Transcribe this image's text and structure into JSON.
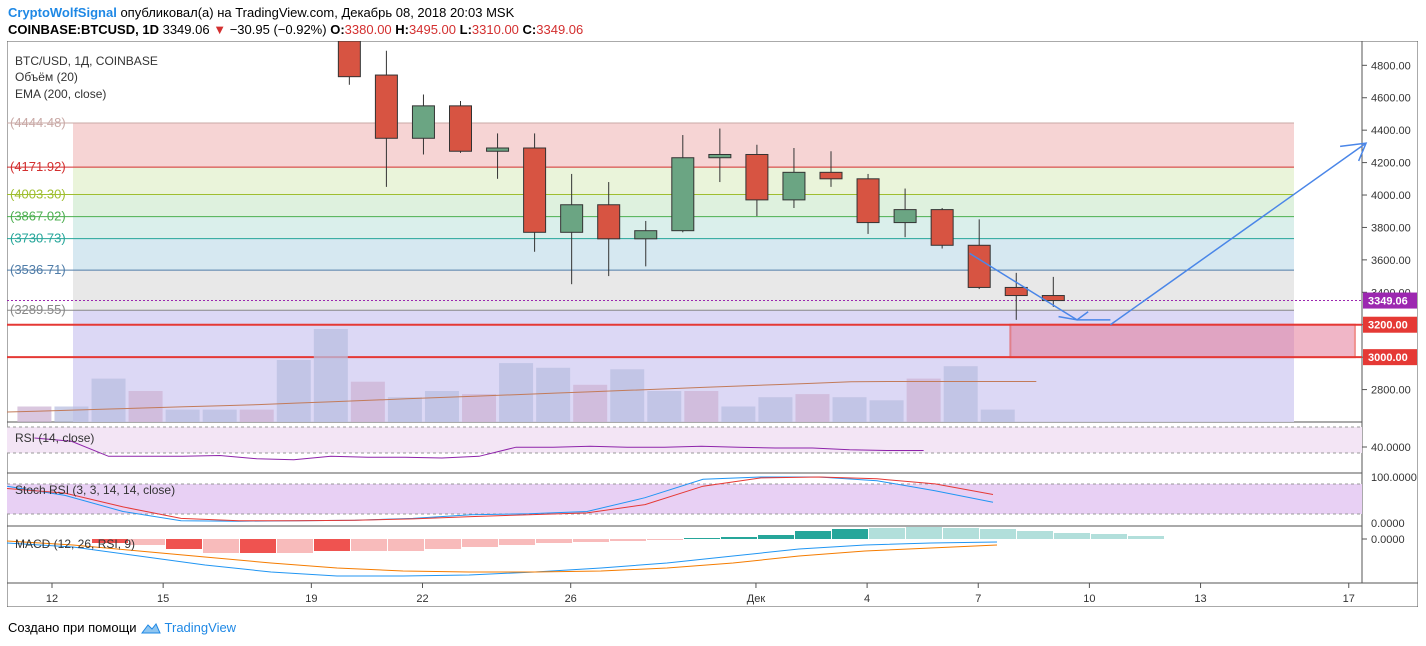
{
  "header": {
    "author": "CryptoWolfSignal",
    "published_text": "опубликовал(а) на TradingView.com, Декабрь 08, 2018 20:03 MSK",
    "symbol": "COINBASE:BTCUSD, 1D",
    "last": "3349.06",
    "change": "−30.95 (−0.92%)",
    "o_label": "O:",
    "o": "3380.00",
    "h_label": "H:",
    "h": "3495.00",
    "l_label": "L:",
    "l": "3310.00",
    "c_label": "C:",
    "c": "3349.06"
  },
  "legend": {
    "line1": "BTC/USD, 1Д, COINBASE",
    "line2": "Объём (20)",
    "line3": "EMA (200, close)",
    "rsi": "RSI (14, close)",
    "stoch": "Stoch RSI (3, 3, 14, 14, close)",
    "macd": "MACD (12, 26, RSI, 9)"
  },
  "footer": {
    "made_with": "Создано при помощи",
    "brand": "TradingView"
  },
  "colors": {
    "up": "#6ba583",
    "down": "#d75442",
    "ema": "#c27b5a",
    "arrow": "#4a86e8",
    "zone": "#e53935",
    "price_tag": "#9c27b0"
  },
  "chart_data": {
    "type": "candlestick",
    "x_labels": [
      "12",
      "15",
      "19",
      "22",
      "26",
      "Дек",
      "4",
      "7",
      "10",
      "13",
      "17"
    ],
    "y_ticks": [
      2800,
      3000,
      3200,
      3400,
      3600,
      3800,
      4000,
      4200,
      4400,
      4600,
      4800
    ],
    "y_tick_labels": [
      "2800.00",
      "3000.00",
      "3200.00",
      "3400.00",
      "3600.00",
      "3800.00",
      "4000.00",
      "4200.00",
      "4400.00",
      "4600.00",
      "4800.00"
    ],
    "ylim": [
      2600,
      4950
    ],
    "candles": [
      {
        "o": 4950,
        "h": 4950,
        "l": 4680,
        "c": 4730
      },
      {
        "o": 4740,
        "h": 4890,
        "l": 4050,
        "c": 4350
      },
      {
        "o": 4350,
        "h": 4620,
        "l": 4250,
        "c": 4550
      },
      {
        "o": 4550,
        "h": 4580,
        "l": 4260,
        "c": 4270
      },
      {
        "o": 4270,
        "h": 4380,
        "l": 4100,
        "c": 4290
      },
      {
        "o": 4290,
        "h": 4380,
        "l": 3650,
        "c": 3770
      },
      {
        "o": 3770,
        "h": 4130,
        "l": 3450,
        "c": 3940
      },
      {
        "o": 3940,
        "h": 4080,
        "l": 3500,
        "c": 3730
      },
      {
        "o": 3730,
        "h": 3840,
        "l": 3560,
        "c": 3780
      },
      {
        "o": 3780,
        "h": 4370,
        "l": 3770,
        "c": 4230
      },
      {
        "o": 4230,
        "h": 4410,
        "l": 4080,
        "c": 4250
      },
      {
        "o": 4250,
        "h": 4310,
        "l": 3870,
        "c": 3970
      },
      {
        "o": 3970,
        "h": 4290,
        "l": 3920,
        "c": 4140
      },
      {
        "o": 4140,
        "h": 4270,
        "l": 4050,
        "c": 4100
      },
      {
        "o": 4100,
        "h": 4130,
        "l": 3760,
        "c": 3830
      },
      {
        "o": 3830,
        "h": 4040,
        "l": 3740,
        "c": 3910
      },
      {
        "o": 3910,
        "h": 3920,
        "l": 3670,
        "c": 3690
      },
      {
        "o": 3690,
        "h": 3850,
        "l": 3420,
        "c": 3430
      },
      {
        "o": 3430,
        "h": 3520,
        "l": 3230,
        "c": 3380
      },
      {
        "o": 3380,
        "h": 3495,
        "l": 3310,
        "c": 3349.06
      }
    ],
    "first_candle_x_day": 19,
    "fibonacci_levels": [
      {
        "label": "(4444.48)",
        "value": 4444.48,
        "color": "#c9a9a6"
      },
      {
        "label": "(4171.92)",
        "value": 4171.92,
        "color": "#d32f2f"
      },
      {
        "label": "(4003.30)",
        "value": 4003.3,
        "color": "#9fbe2f"
      },
      {
        "label": "(3867.02)",
        "value": 3867.02,
        "color": "#4caf50"
      },
      {
        "label": "(3730.73)",
        "value": 3730.73,
        "color": "#26a69a"
      },
      {
        "label": "(3536.71)",
        "value": 3536.71,
        "color": "#4f7ca8"
      },
      {
        "label": "(3289.55)",
        "value": 3289.55,
        "color": "#888888"
      }
    ],
    "price_tags": [
      {
        "label": "3349.06",
        "value": 3349.06
      },
      {
        "label": "3200.00",
        "value": 3200
      },
      {
        "label": "3000.00",
        "value": 3000
      }
    ],
    "support_zone": [
      3000,
      3200
    ],
    "rsi": {
      "tick_label": "40.0000",
      "values": [
        62,
        58,
        40,
        40,
        40,
        41,
        37,
        36,
        40,
        39,
        39,
        38,
        40,
        51,
        51,
        52,
        51,
        51,
        52,
        51,
        50,
        50,
        48,
        47,
        47
      ]
    },
    "stoch": {
      "tick_labels": [
        "100.0000",
        "0.0000"
      ],
      "k": [
        80,
        60,
        25,
        5,
        4,
        5,
        6,
        10,
        18,
        20,
        25,
        55,
        95,
        100,
        100,
        92,
        70,
        45
      ],
      "d": [
        75,
        65,
        35,
        10,
        5,
        5,
        6,
        9,
        14,
        18,
        22,
        40,
        80,
        98,
        100,
        96,
        85,
        62
      ]
    },
    "macd": {
      "tick_label": "0.0000"
    }
  }
}
